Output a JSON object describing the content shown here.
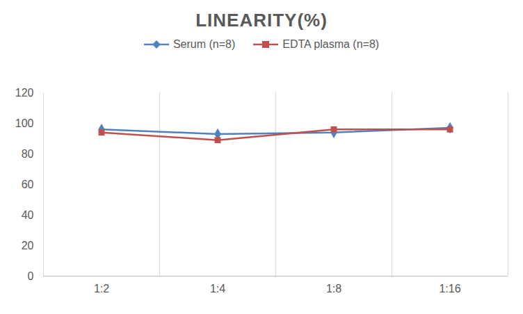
{
  "chart_data": {
    "type": "line",
    "title": "LINEARITY(%)",
    "categories": [
      "1:2",
      "1:4",
      "1:8",
      "1:16"
    ],
    "series": [
      {
        "name": "Serum (n=8)",
        "color": "#4f81bd",
        "marker": "diamond",
        "values": [
          96,
          93,
          94,
          97
        ]
      },
      {
        "name": "EDTA plasma (n=8)",
        "color": "#c0504d",
        "marker": "square",
        "values": [
          94,
          89,
          96,
          96
        ]
      }
    ],
    "ylim": [
      0,
      120
    ],
    "yticks": [
      0,
      20,
      40,
      60,
      80,
      100,
      120
    ],
    "grid": "x",
    "legend": "top"
  }
}
